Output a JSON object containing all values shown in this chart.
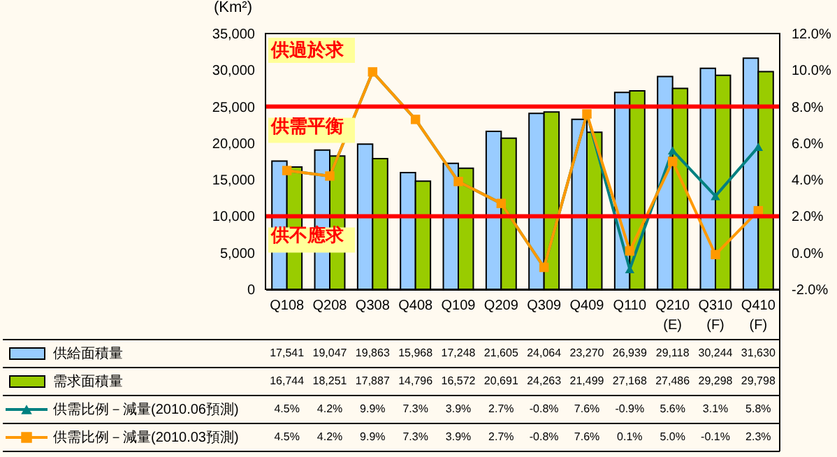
{
  "chart_data": {
    "type": "bar",
    "ylabel": "(Km²)",
    "categories": [
      "Q108",
      "Q208",
      "Q308",
      "Q408",
      "Q109",
      "Q209",
      "Q309",
      "Q409",
      "Q110",
      "Q210 (E)",
      "Q310 (F)",
      "Q410 (F)"
    ],
    "series": [
      {
        "name": "供給面積量",
        "color": "#99ccff",
        "values": [
          17541,
          19047,
          19863,
          15968,
          17248,
          21605,
          24064,
          23270,
          26939,
          29118,
          30244,
          31630
        ],
        "value_labels": [
          "17,541",
          "19,047",
          "19,863",
          "15,968",
          "17,248",
          "21,605",
          "24,064",
          "23,270",
          "26,939",
          "29,118",
          "30,244",
          "31,630"
        ]
      },
      {
        "name": "需求面積量",
        "color": "#99cc00",
        "values": [
          16744,
          18251,
          17887,
          14796,
          16572,
          20691,
          24263,
          21499,
          27168,
          27486,
          29298,
          29798
        ],
        "value_labels": [
          "16,744",
          "18,251",
          "17,887",
          "14,796",
          "16,572",
          "20,691",
          "24,263",
          "21,499",
          "27,168",
          "27,486",
          "29,298",
          "29,798"
        ]
      },
      {
        "name": "供需比例－減量(2010.06預測)",
        "type": "line",
        "axis": "y2",
        "marker": "triangle",
        "color": "#008080",
        "values": [
          4.5,
          4.2,
          9.9,
          7.3,
          3.9,
          2.7,
          -0.8,
          7.6,
          -0.9,
          5.6,
          3.1,
          5.8
        ],
        "value_labels": [
          "4.5%",
          "4.2%",
          "9.9%",
          "7.3%",
          "3.9%",
          "2.7%",
          "-0.8%",
          "7.6%",
          "-0.9%",
          "5.6%",
          "3.1%",
          "5.8%"
        ]
      },
      {
        "name": "供需比例－減量(2010.03預測)",
        "type": "line",
        "axis": "y2",
        "marker": "square",
        "color": "#ff9900",
        "values": [
          4.5,
          4.2,
          9.9,
          7.3,
          3.9,
          2.7,
          -0.8,
          7.6,
          0.1,
          5.0,
          -0.1,
          2.3
        ],
        "value_labels": [
          "4.5%",
          "4.2%",
          "9.9%",
          "7.3%",
          "3.9%",
          "2.7%",
          "-0.8%",
          "7.6%",
          "0.1%",
          "5.0%",
          "-0.1%",
          "2.3%"
        ]
      }
    ],
    "ylim": [
      0,
      35000
    ],
    "yticks": [
      0,
      {
        "value": 5000,
        "label": "5,000"
      },
      {
        "value": 10000,
        "label": "10,000"
      },
      {
        "value": 15000,
        "label": "15,000"
      },
      {
        "value": 20000,
        "label": "20,000"
      },
      {
        "value": 25000,
        "label": "25,000"
      },
      {
        "value": 30000,
        "label": "30,000"
      },
      {
        "value": 35000,
        "label": "35,000"
      }
    ],
    "y2lim": [
      -2,
      12
    ],
    "y2ticks": [
      {
        "value": -2,
        "label": "-2.0%"
      },
      {
        "value": 0,
        "label": "0.0%"
      },
      {
        "value": 2,
        "label": "2.0%"
      },
      {
        "value": 4,
        "label": "4.0%"
      },
      {
        "value": 6,
        "label": "6.0%"
      },
      {
        "value": 8,
        "label": "8.0%"
      },
      {
        "value": 10,
        "label": "10.0%"
      },
      {
        "value": 12,
        "label": "12.0%"
      }
    ],
    "ref_lines": [
      {
        "axis": "y2",
        "value": 8,
        "label": "供需平衡",
        "color": "#ff0000"
      },
      {
        "axis": "y2",
        "value": 2,
        "label": "供不應求",
        "color": "#ff0000"
      }
    ],
    "annotations": [
      "供過於求"
    ],
    "legend": "bottom left",
    "grid": false
  }
}
